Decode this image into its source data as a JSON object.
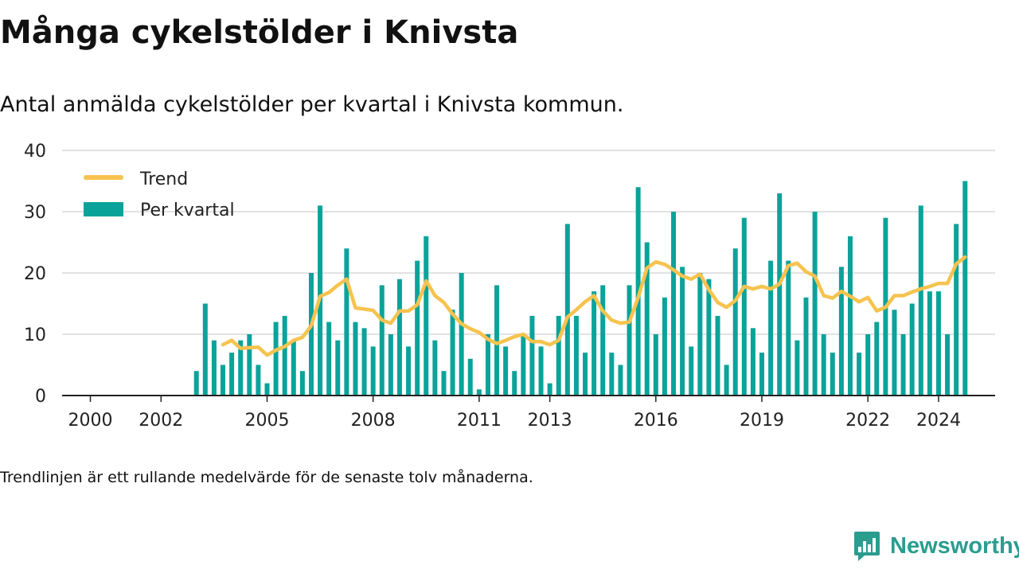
{
  "header": {
    "title": "Många cykelstölder i Knivsta",
    "subtitle": "Antal anmälda cykelstölder per kvartal i Knivsta kommun."
  },
  "footer": {
    "note": "Trendlinjen är ett rullande medelvärde för de senaste tolv månaderna.",
    "brand": "Newsworthy"
  },
  "colors": {
    "bars": "#0aa39a",
    "trend": "#f6c34e",
    "brand": "#2a9d8f"
  },
  "icons": {
    "brand_logo": "chart-document-icon"
  },
  "chart_data": {
    "type": "bar",
    "title": "Många cykelstölder i Knivsta",
    "subtitle": "Antal anmälda cykelstölder per kvartal i Knivsta kommun.",
    "x_range": [
      1999.2,
      2025.6
    ],
    "x_ticks": [
      2000,
      2002,
      2005,
      2008,
      2011,
      2013,
      2016,
      2019,
      2022,
      2024
    ],
    "ylim": [
      0,
      40
    ],
    "y_ticks": [
      0,
      10,
      20,
      30,
      40
    ],
    "grid": true,
    "legend": {
      "position": "top-left",
      "entries": [
        "Trend",
        "Per kvartal"
      ]
    },
    "series": [
      {
        "name": "Per kvartal",
        "type": "bar",
        "start": 2003.0,
        "step": 0.25,
        "values": [
          4,
          15,
          9,
          5,
          7,
          9,
          10,
          5,
          2,
          12,
          13,
          9,
          4,
          20,
          31,
          12,
          9,
          24,
          12,
          11,
          8,
          18,
          10,
          19,
          8,
          22,
          26,
          9,
          4,
          14,
          20,
          6,
          1,
          10,
          18,
          8,
          4,
          10,
          13,
          8,
          2,
          13,
          28,
          13,
          7,
          17,
          18,
          7,
          5,
          18,
          34,
          25,
          10,
          16,
          30,
          21,
          8,
          20,
          19,
          13,
          5,
          24,
          29,
          11,
          7,
          22,
          33,
          22,
          9,
          16,
          30,
          10,
          7,
          21,
          26,
          7,
          10,
          12,
          29,
          14,
          10,
          15,
          31,
          17,
          17,
          10,
          28,
          35
        ]
      },
      {
        "name": "Trend",
        "type": "line",
        "start": 2003.75,
        "step": 0.25,
        "values": [
          8.3,
          9.0,
          7.7,
          7.8,
          7.9,
          6.6,
          7.4,
          8.0,
          9.0,
          9.5,
          11.4,
          16.2,
          16.8,
          18.0,
          19.0,
          14.3,
          14.1,
          13.9,
          12.3,
          11.8,
          13.8,
          13.8,
          14.8,
          18.7,
          16.3,
          15.2,
          13.3,
          11.7,
          10.9,
          10.3,
          9.2,
          8.5,
          9.0,
          9.6,
          10.0,
          8.8,
          8.8,
          8.3,
          9.0,
          12.8,
          14.0,
          15.3,
          16.3,
          13.8,
          12.3,
          11.8,
          12.0,
          16.0,
          20.8,
          21.8,
          21.4,
          20.5,
          19.5,
          19.0,
          19.8,
          17.3,
          15.2,
          14.4,
          15.5,
          17.8,
          17.4,
          17.8,
          17.4,
          18.2,
          21.2,
          21.6,
          20.2,
          19.5,
          16.3,
          15.9,
          17.0,
          16.2,
          15.3,
          16.0,
          13.8,
          14.4,
          16.3,
          16.3,
          16.9,
          17.4,
          17.8,
          18.3,
          18.3,
          21.5,
          22.6
        ]
      }
    ]
  }
}
